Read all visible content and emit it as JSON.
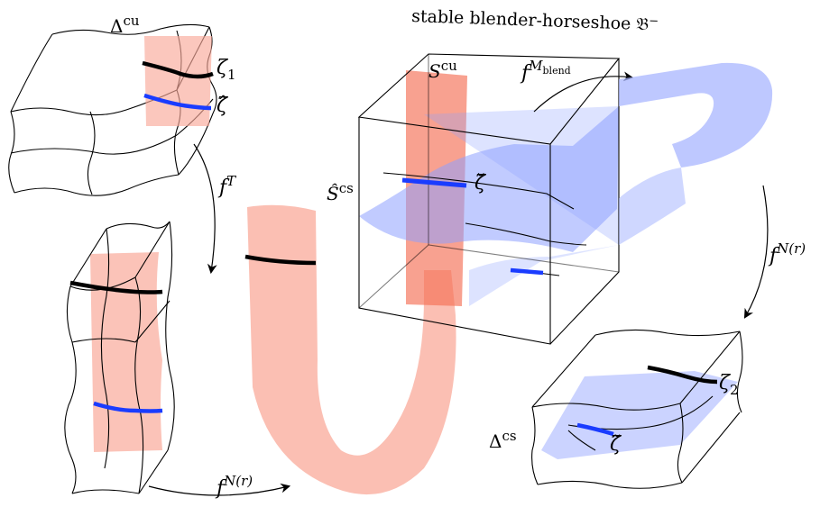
{
  "title": "stable blender-horseshoe 𝔅",
  "title_sup": "−",
  "colors": {
    "red_strip": "#f9a99a",
    "blue_strip": "#a8b6ff",
    "black_curve": "#000000",
    "blue_curve": "#1a3cff"
  },
  "labels": {
    "delta_cu_base": "Δ",
    "delta_cu_sup": "cu",
    "zeta1_base": "ζ",
    "zeta1_sub": "1",
    "zeta_hat": "ζ̂",
    "fT_base": "f",
    "fT_sup": "T",
    "fN_left_base": "f",
    "fN_left_sup": "N(r)",
    "S_cu_base": "S",
    "S_cu_sup": "cu",
    "f_Mblend_base": "f",
    "f_Mblend_sup": "M",
    "f_Mblend_subsup": "blend",
    "S_hat_cs_base": "Ŝ",
    "S_hat_cs_sup": "cs",
    "zeta_breve": "ζ̆",
    "fN_right_base": "f",
    "fN_right_sup": "N(r)",
    "zeta2_base": "ζ",
    "zeta2_sub": "2",
    "delta_cs_base": "Δ",
    "delta_cs_sup": "cs",
    "zeta_tilde": "ζ̃"
  }
}
